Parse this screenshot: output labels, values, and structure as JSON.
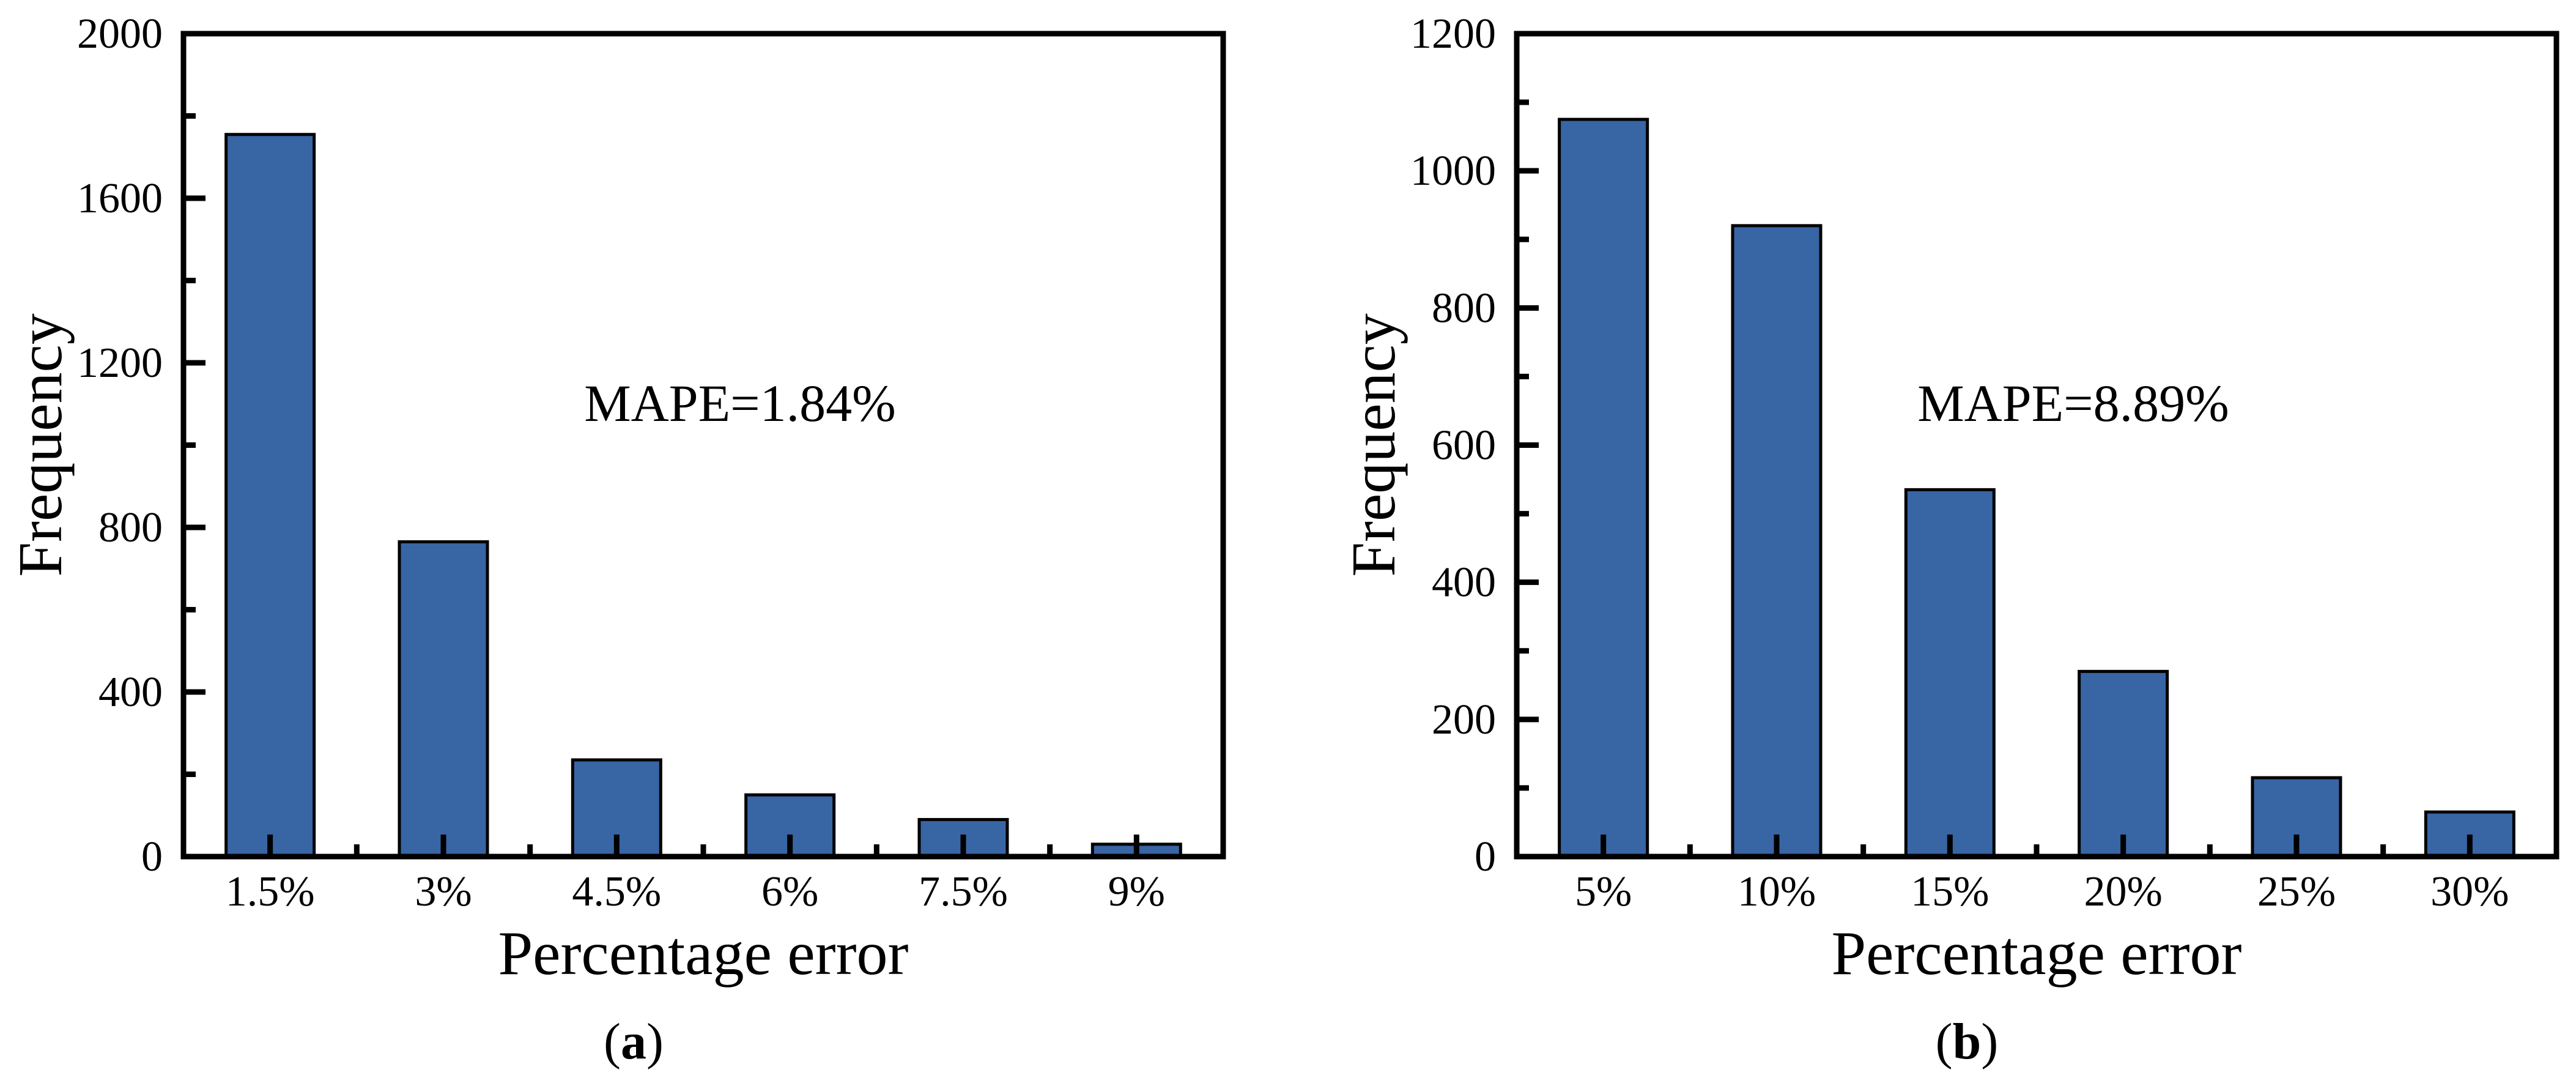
{
  "figure": {
    "background": "#ffffff",
    "bar_fill": "#3865A4",
    "bar_stroke": "#000000",
    "axis_color": "#000000"
  },
  "chart_data": [
    {
      "type": "bar",
      "panel": "a",
      "caption": {
        "open": "(",
        "letter": "a",
        "close": ")"
      },
      "xlabel": "Percentage error",
      "ylabel": "Frequency",
      "annotation": "MAPE=1.84%",
      "categories": [
        "1.5%",
        "3%",
        "4.5%",
        "6%",
        "7.5%",
        "9%"
      ],
      "values": [
        1755,
        765,
        235,
        150,
        90,
        30
      ],
      "ylim": [
        0,
        2000
      ],
      "ytick_values": [
        0,
        400,
        800,
        1200,
        1600,
        2000
      ],
      "ytick_labels": [
        "0",
        "400",
        "800",
        "1200",
        "1600",
        "2000"
      ],
      "yminor_values": [
        200,
        600,
        1000,
        1400,
        1800
      ],
      "grid": false,
      "legend": "none"
    },
    {
      "type": "bar",
      "panel": "b",
      "caption": {
        "open": "(",
        "letter": "b",
        "close": ")"
      },
      "xlabel": "Percentage error",
      "ylabel": "Frequency",
      "annotation": "MAPE=8.89%",
      "categories": [
        "5%",
        "10%",
        "15%",
        "20%",
        "25%",
        "30%"
      ],
      "values": [
        1075,
        920,
        535,
        270,
        115,
        65
      ],
      "ylim": [
        0,
        1200
      ],
      "ytick_values": [
        0,
        200,
        400,
        600,
        800,
        1000,
        1200
      ],
      "ytick_labels": [
        "0",
        "200",
        "400",
        "600",
        "800",
        "1000",
        "1200"
      ],
      "yminor_values": [
        100,
        300,
        500,
        700,
        900,
        1100
      ],
      "grid": false,
      "legend": "none"
    }
  ]
}
